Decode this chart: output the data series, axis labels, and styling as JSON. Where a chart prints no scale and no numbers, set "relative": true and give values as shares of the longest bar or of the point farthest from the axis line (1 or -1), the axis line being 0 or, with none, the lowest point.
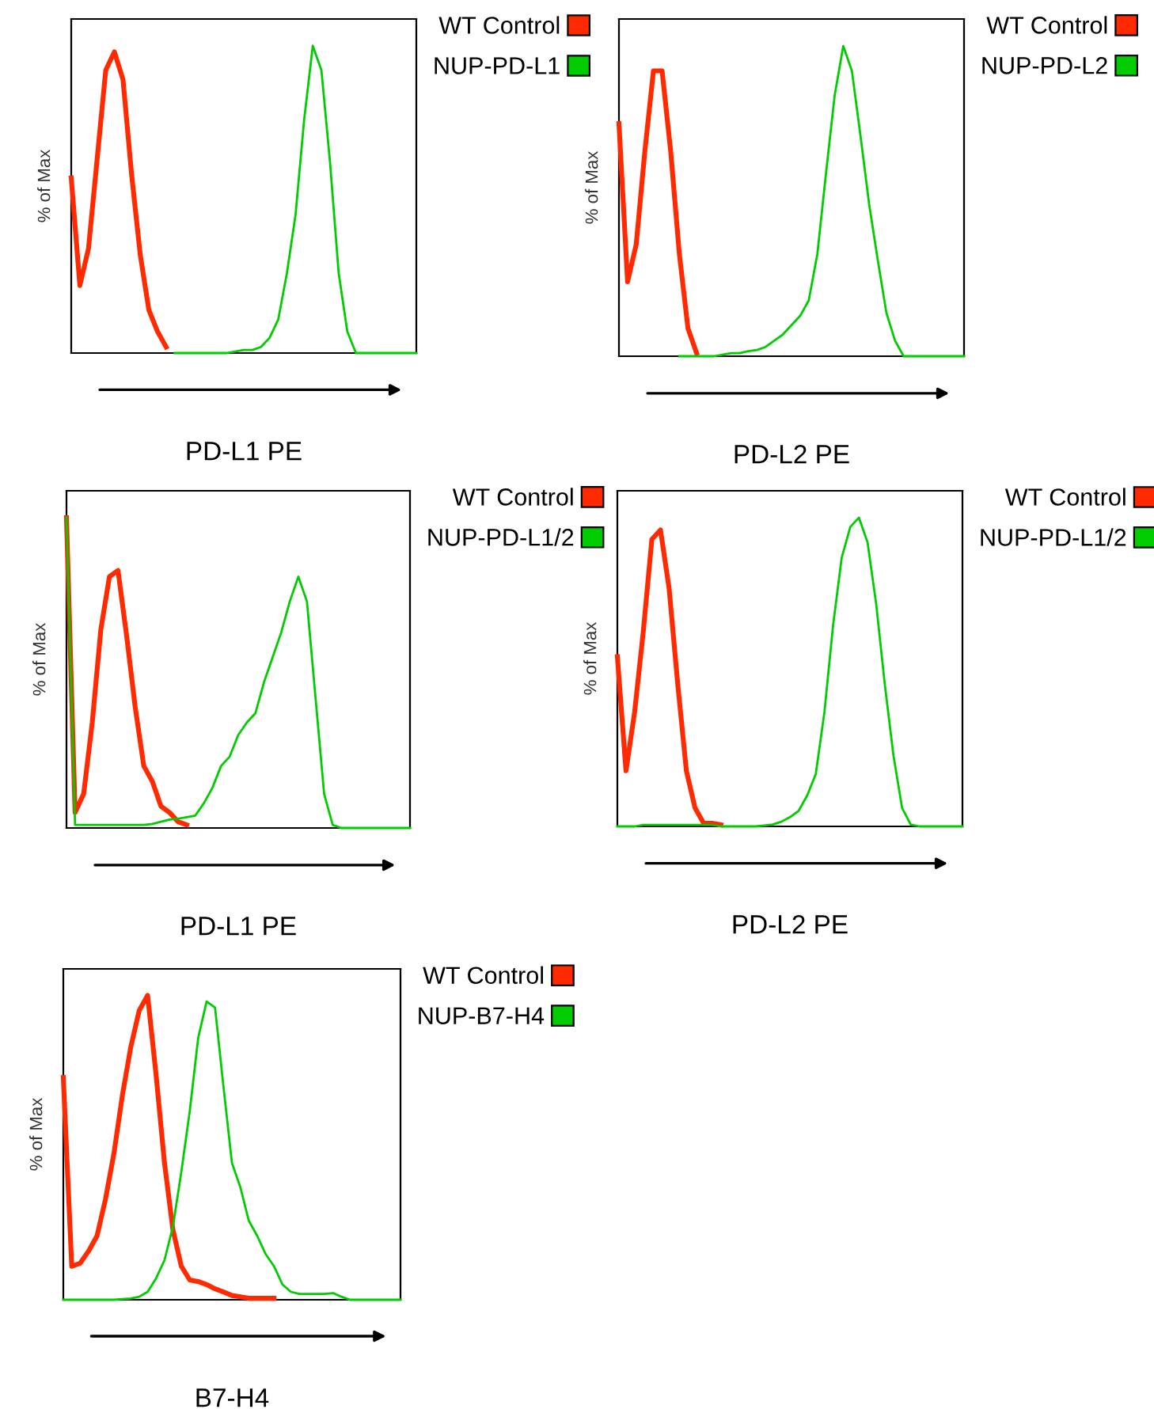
{
  "chart_data": [
    {
      "type": "line",
      "relative": true,
      "ylabel": "% of Max",
      "xlabel": "PD-L1 PE",
      "legend": "top right",
      "categories": [
        null,
        null,
        null,
        null,
        null,
        null,
        null,
        null,
        null,
        null,
        null,
        null,
        null,
        null,
        null,
        null,
        null,
        null,
        null,
        null,
        null,
        null,
        null,
        null,
        null,
        null,
        null,
        null,
        null,
        null,
        null,
        null,
        null,
        null,
        null,
        null,
        null,
        null,
        null,
        null,
        null
      ],
      "series": [
        {
          "name": "WT Control",
          "color": "#ff2a00",
          "values": [
            0.57,
            0.22,
            0.34,
            0.63,
            0.92,
            0.98,
            0.89,
            0.58,
            0.32,
            0.14,
            0.07,
            0.02,
            null,
            null,
            null,
            null,
            null,
            null,
            null,
            null,
            null,
            null,
            null,
            null,
            null,
            null,
            null,
            null,
            null,
            null,
            null,
            null,
            null,
            null,
            null,
            null,
            null,
            null,
            null,
            null,
            null
          ]
        },
        {
          "name": "NUP-PD-L1",
          "color": "#00cc00",
          "values": [
            null,
            null,
            null,
            null,
            null,
            null,
            null,
            null,
            null,
            null,
            null,
            null,
            0,
            0,
            0,
            0,
            0,
            0,
            0,
            0.005,
            0.01,
            0.01,
            0.02,
            0.05,
            0.11,
            0.26,
            0.45,
            0.76,
            1.0,
            0.92,
            0.62,
            0.26,
            0.07,
            0,
            0,
            0,
            0,
            0,
            0,
            0,
            0
          ]
        }
      ]
    },
    {
      "type": "line",
      "relative": true,
      "ylabel": "% of Max",
      "xlabel": "PD-L2 PE",
      "legend": "top right",
      "categories": [
        null,
        null,
        null,
        null,
        null,
        null,
        null,
        null,
        null,
        null,
        null,
        null,
        null,
        null,
        null,
        null,
        null,
        null,
        null,
        null,
        null,
        null,
        null,
        null,
        null,
        null,
        null,
        null,
        null,
        null,
        null,
        null,
        null,
        null,
        null,
        null,
        null,
        null,
        null,
        null,
        null
      ],
      "series": [
        {
          "name": "WT Control",
          "color": "#ff2a00",
          "values": [
            0.75,
            0.24,
            0.36,
            0.66,
            0.92,
            0.92,
            0.66,
            0.33,
            0.09,
            0.01,
            null,
            null,
            null,
            null,
            null,
            null,
            null,
            null,
            null,
            null,
            null,
            null,
            null,
            null,
            null,
            null,
            null,
            null,
            null,
            null,
            null,
            null,
            null,
            null,
            null,
            null,
            null,
            null,
            null,
            null,
            null
          ]
        },
        {
          "name": "NUP-PD-L2",
          "color": "#00cc00",
          "values": [
            null,
            null,
            null,
            null,
            null,
            null,
            null,
            0,
            0,
            0,
            0,
            0,
            0.005,
            0.01,
            0.01,
            0.016,
            0.02,
            0.03,
            0.05,
            0.07,
            0.1,
            0.13,
            0.18,
            0.33,
            0.59,
            0.84,
            1.0,
            0.92,
            0.71,
            0.49,
            0.31,
            0.14,
            0.05,
            0,
            0,
            0,
            0,
            0,
            0,
            0,
            0
          ]
        }
      ]
    },
    {
      "type": "line",
      "relative": true,
      "ylabel": "% of Max",
      "xlabel": "PD-L1 PE",
      "legend": "top right",
      "categories": [
        null,
        null,
        null,
        null,
        null,
        null,
        null,
        null,
        null,
        null,
        null,
        null,
        null,
        null,
        null,
        null,
        null,
        null,
        null,
        null,
        null,
        null,
        null,
        null,
        null,
        null,
        null,
        null,
        null,
        null,
        null,
        null,
        null,
        null,
        null,
        null,
        null,
        null,
        null,
        null,
        null
      ],
      "series": [
        {
          "name": "WT Control",
          "color": "#ff2a00",
          "values": [
            1.0,
            0.05,
            0.11,
            0.34,
            0.64,
            0.81,
            0.83,
            0.62,
            0.39,
            0.2,
            0.15,
            0.07,
            0.05,
            0.02,
            0.01,
            null,
            null,
            null,
            null,
            null,
            null,
            null,
            null,
            null,
            null,
            null,
            null,
            null,
            null,
            null,
            null,
            null,
            null,
            null,
            null,
            null,
            null,
            null,
            null,
            null,
            null
          ]
        },
        {
          "name": "NUP-PD-L1/2",
          "color": "#00cc00",
          "values": [
            1.0,
            0.01,
            0.01,
            0.01,
            0.01,
            0.01,
            0.01,
            0.01,
            0.01,
            0.01,
            0.013,
            0.02,
            0.027,
            0.03,
            0.035,
            0.04,
            0.08,
            0.13,
            0.2,
            0.23,
            0.3,
            0.34,
            0.37,
            0.47,
            0.55,
            0.63,
            0.73,
            0.81,
            0.73,
            0.42,
            0.11,
            0.01,
            0,
            0,
            0,
            0,
            0,
            0,
            0,
            0,
            0
          ]
        }
      ]
    },
    {
      "type": "line",
      "relative": true,
      "ylabel": "% of Max",
      "xlabel": "PD-L2 PE",
      "legend": "top right",
      "categories": [
        null,
        null,
        null,
        null,
        null,
        null,
        null,
        null,
        null,
        null,
        null,
        null,
        null,
        null,
        null,
        null,
        null,
        null,
        null,
        null,
        null,
        null,
        null,
        null,
        null,
        null,
        null,
        null,
        null,
        null,
        null,
        null,
        null,
        null,
        null,
        null,
        null,
        null,
        null,
        null,
        null
      ],
      "series": [
        {
          "name": "WT Control",
          "color": "#ff2a00",
          "values": [
            0.55,
            0.18,
            0.37,
            0.63,
            0.93,
            0.96,
            0.77,
            0.46,
            0.18,
            0.06,
            0.01,
            0.01,
            0.005,
            null,
            null,
            null,
            null,
            null,
            null,
            null,
            null,
            null,
            null,
            null,
            null,
            null,
            null,
            null,
            null,
            null,
            null,
            null,
            null,
            null,
            null,
            null,
            null,
            null,
            null,
            null,
            null
          ]
        },
        {
          "name": "NUP-PD-L1/2",
          "color": "#00cc00",
          "values": [
            0,
            0,
            0,
            0.005,
            0.005,
            0.005,
            0.005,
            0.005,
            0.005,
            0.005,
            0.005,
            0.005,
            0,
            0,
            0,
            0,
            0,
            0.003,
            0.006,
            0.015,
            0.03,
            0.05,
            0.1,
            0.17,
            0.37,
            0.65,
            0.87,
            0.97,
            1.0,
            0.92,
            0.72,
            0.46,
            0.23,
            0.06,
            0.006,
            0,
            0,
            0,
            0,
            0,
            0
          ]
        }
      ]
    },
    {
      "type": "line",
      "relative": true,
      "ylabel": "% of Max",
      "xlabel": "B7-H4",
      "legend": "top right",
      "categories": [
        null,
        null,
        null,
        null,
        null,
        null,
        null,
        null,
        null,
        null,
        null,
        null,
        null,
        null,
        null,
        null,
        null,
        null,
        null,
        null,
        null,
        null,
        null,
        null,
        null,
        null,
        null,
        null,
        null,
        null,
        null,
        null,
        null,
        null,
        null,
        null,
        null,
        null,
        null,
        null,
        null
      ],
      "series": [
        {
          "name": "WT Control",
          "color": "#ff2a00",
          "values": [
            0.73,
            0.11,
            0.12,
            0.16,
            0.21,
            0.33,
            0.48,
            0.67,
            0.83,
            0.95,
            1.0,
            0.74,
            0.45,
            0.23,
            0.11,
            0.065,
            0.06,
            0.05,
            0.036,
            0.026,
            0.014,
            0.01,
            0.005,
            0.005,
            0.005,
            0.005,
            null,
            null,
            null,
            null,
            null,
            null,
            null,
            null,
            null,
            null,
            null,
            null,
            null,
            null,
            null
          ]
        },
        {
          "name": "NUP-B7-H4",
          "color": "#00cc00",
          "values": [
            0,
            0,
            0,
            0,
            0,
            0,
            0,
            0.002,
            0.004,
            0.01,
            0.026,
            0.07,
            0.13,
            0.24,
            0.42,
            0.62,
            0.86,
            0.98,
            0.96,
            0.7,
            0.45,
            0.37,
            0.26,
            0.21,
            0.15,
            0.11,
            0.05,
            0.026,
            0.019,
            0.019,
            0.019,
            0.019,
            0.022,
            0.01,
            0,
            0,
            0,
            0,
            0,
            0,
            0
          ]
        }
      ]
    }
  ]
}
